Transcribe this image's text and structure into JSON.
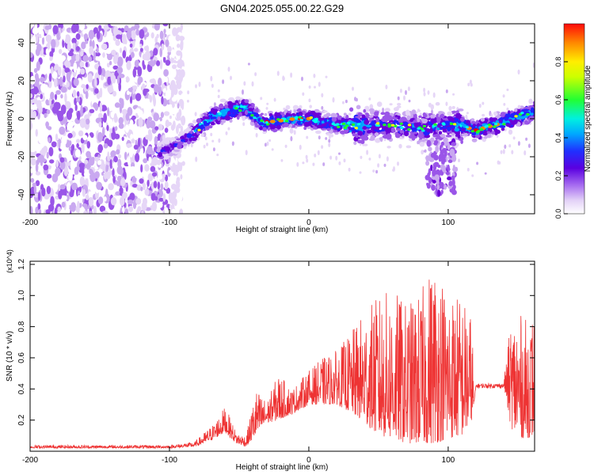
{
  "figure_title": "GN04.2025.055.00.22.G29",
  "colors": {
    "snr_line": "#ee3333",
    "axis": "#000000",
    "colormap": [
      "#ffffff",
      "#e6d6f7",
      "#c9a8f0",
      "#9a55e8",
      "#6a00d8",
      "#2222ff",
      "#00a8ff",
      "#00ffee",
      "#22ff22",
      "#ffff00",
      "#ff8800",
      "#ff0000"
    ]
  },
  "chart_data": [
    {
      "type": "heatmap",
      "title": "GN04.2025.055.00.22.G29",
      "xlabel": "Height of straight line (km)",
      "ylabel": "Frequency (Hz)",
      "xlim": [
        -200,
        162
      ],
      "ylim": [
        -50,
        50
      ],
      "xticks": [
        -200,
        -100,
        0,
        100
      ],
      "yticks": [
        -40,
        -20,
        0,
        20,
        40
      ],
      "colorbar": {
        "label": "Normalized spectral amplitude",
        "range": [
          0,
          1
        ],
        "ticks": [
          "0.0",
          "0.2",
          "0.4",
          "0.6",
          "0.8"
        ]
      },
      "ridge": {
        "x": [
          -108,
          -95,
          -82,
          -70,
          -58,
          -45,
          -35,
          -20,
          -10,
          0,
          20,
          40,
          60,
          80,
          95,
          105,
          120,
          135,
          150,
          162
        ],
        "y": [
          -18,
          -14,
          -7,
          1,
          4,
          6,
          -2,
          -1,
          0,
          0,
          -3,
          -4,
          -3,
          -5,
          -4,
          -3,
          -6,
          -3,
          1,
          4
        ]
      }
    },
    {
      "type": "line",
      "xlabel": "Height of straight line (km)",
      "ylabel": "SNR (10 * v/v)",
      "multiplier_label": "(x10^4)",
      "xlim": [
        -200,
        162
      ],
      "ylim": [
        0,
        1.22
      ],
      "xticks": [
        -200,
        -100,
        0,
        100
      ],
      "yticks": [
        0.2,
        0.4,
        0.6,
        0.8,
        1.0,
        1.2
      ],
      "envelope": {
        "x": [
          -200,
          -100,
          -82,
          -75,
          -68,
          -60,
          -52,
          -45,
          -38,
          -30,
          -22,
          -12,
          0,
          10,
          20,
          30,
          40,
          50,
          60,
          70,
          80,
          90,
          100,
          110,
          116,
          120,
          140,
          145,
          150,
          155,
          162
        ],
        "base": [
          0.02,
          0.02,
          0.03,
          0.05,
          0.08,
          0.12,
          0.05,
          0.03,
          0.1,
          0.18,
          0.2,
          0.24,
          0.3,
          0.3,
          0.3,
          0.25,
          0.18,
          0.1,
          0.08,
          0.05,
          0.05,
          0.05,
          0.08,
          0.1,
          0.15,
          0.42,
          0.42,
          0.15,
          0.1,
          0.08,
          0.1
        ],
        "peak": [
          0.04,
          0.04,
          0.06,
          0.12,
          0.18,
          0.29,
          0.12,
          0.1,
          0.4,
          0.32,
          0.5,
          0.4,
          0.52,
          0.6,
          0.65,
          0.76,
          0.9,
          1.0,
          1.05,
          0.95,
          1.02,
          1.25,
          1.05,
          1.0,
          0.9,
          0.46,
          0.46,
          0.85,
          0.9,
          0.85,
          0.9
        ]
      }
    }
  ]
}
